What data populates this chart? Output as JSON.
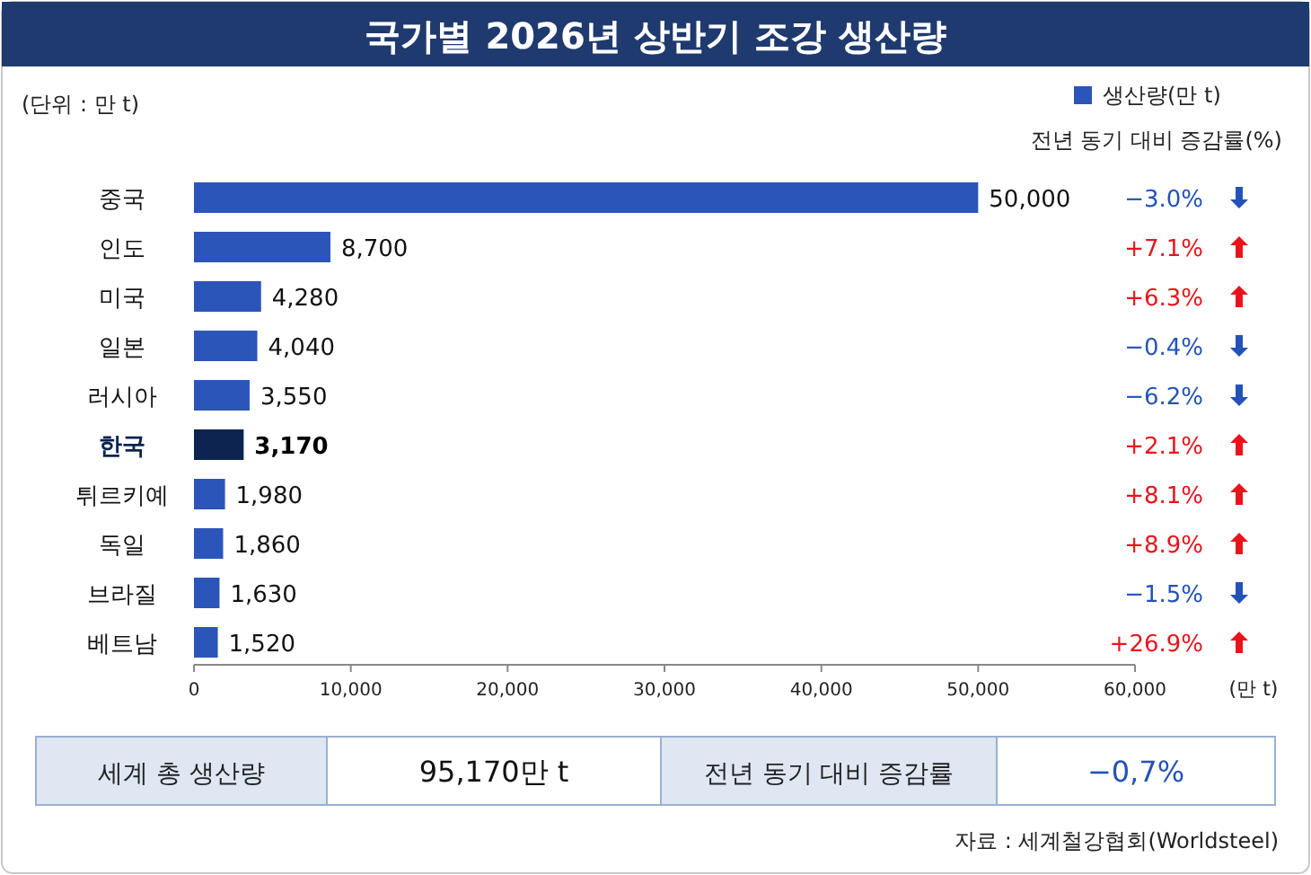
{
  "chart_data": {
    "type": "bar",
    "orientation": "horizontal",
    "title": "국가별 2026년 상반기 조강 생산량",
    "subtitle": "전년 동기 대비 증감률(%)",
    "xlabel": "(만 t)",
    "categories": [
      "중국",
      "인도",
      "미국",
      "일본",
      "러시아",
      "한국",
      "튀르키예",
      "독일",
      "브라질",
      "베트남"
    ],
    "series": [
      {
        "name": "생산량(만 t)",
        "color": "#2b55b8",
        "colors": [
          "#2b55b8",
          "#2b55b8",
          "#2b55b8",
          "#2b55b8",
          "#2b55b8",
          "#0d2350",
          "#2b55b8",
          "#2b55b8",
          "#2b55b8",
          "#2b55b8"
        ],
        "values": [
          50000,
          8700,
          4280,
          4040,
          3550,
          3170,
          1980,
          1860,
          1630,
          1520
        ],
        "value_labels": [
          "50,000",
          "8,700",
          "4,280",
          "4,040",
          "3,550",
          "3,170",
          "1,980",
          "1,860",
          "1,630",
          "1,520"
        ]
      }
    ],
    "xlim": [
      0,
      60000
    ],
    "xticks": [
      0,
      {
        "value": 10000,
        "label": "10,000"
      },
      {
        "value": 20000,
        "label": "20,000"
      },
      {
        "value": 30000,
        "label": "30,000"
      },
      {
        "value": 40000,
        "label": "40,000"
      },
      {
        "value": 50000,
        "label": "50,000"
      },
      {
        "value": 60000,
        "label": "60,000"
      }
    ],
    "grid": false,
    "legend": "top right",
    "annotations": [
      "(단위 : 만 t)",
      "−3.0%",
      "+7.1%",
      "+6.3%",
      "−0.4%",
      "−6.2%",
      "+2.1%",
      "+8.1%",
      "+8.9%",
      "−1.5%",
      "+26.9%",
      "세계 총 생산량",
      "95,170만 t",
      "전년 동기 대비 증감률",
      "−0,7%",
      "자료 : 세계철강협회(Worldsteel)"
    ]
  }
}
